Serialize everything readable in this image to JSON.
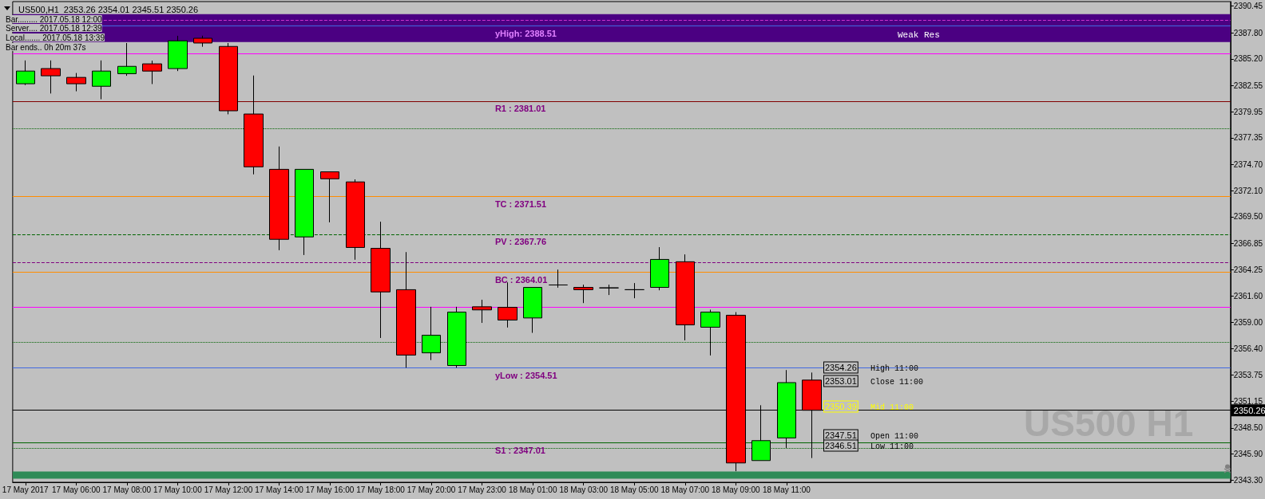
{
  "chart_data": {
    "type": "candlestick",
    "title": "US500,H1  2353.26 2354.01 2345.51 2350.26",
    "categories": [
      "17 May 2017",
      null,
      "17 May 06:00",
      null,
      "17 May 08:00",
      null,
      "17 May 10:00",
      null,
      "17 May 12:00",
      null,
      "17 May 14:00",
      null,
      "17 May 16:00",
      null,
      "17 May 18:00",
      null,
      "17 May 20:00",
      null,
      "17 May 23:00",
      null,
      "18 May 01:00",
      null,
      "18 May 03:00",
      null,
      "18 May 05:00",
      null,
      "18 May 07:00",
      null,
      "18 May 09:00",
      null,
      "18 May 11:00",
      null,
      null,
      null,
      null,
      null,
      null,
      null,
      null,
      null,
      null,
      null,
      null,
      null,
      null,
      null,
      null,
      null
    ],
    "ohlc": [
      [
        2382.73,
        2385.05,
        2382.6,
        2383.99
      ],
      [
        2384.24,
        2385.05,
        2381.76,
        2383.52
      ],
      [
        2383.36,
        2383.8,
        2381.98,
        2382.73
      ],
      [
        2382.48,
        2385.05,
        2381.19,
        2383.99
      ],
      [
        2383.73,
        2386.78,
        2383.52,
        2384.46
      ],
      [
        2384.71,
        2385.03,
        2382.7,
        2383.99
      ],
      [
        2384.24,
        2387.5,
        2383.99,
        2387.0
      ],
      [
        2387.25,
        2387.51,
        2386.41,
        2386.78
      ],
      [
        2386.44,
        2386.78,
        2379.69,
        2380.04
      ],
      [
        2379.72,
        2383.55,
        2373.72,
        2374.47
      ],
      [
        2374.22,
        2376.49,
        2366.18,
        2367.26
      ],
      [
        2367.5,
        2374.22,
        2365.7,
        2374.22
      ],
      [
        2373.97,
        2373.97,
        2368.95,
        2373.28
      ],
      [
        2372.97,
        2373.22,
        2365.23,
        2366.45
      ],
      [
        2366.36,
        2369.01,
        2357.45,
        2362.03
      ],
      [
        2362.25,
        2365.99,
        2354.49,
        2355.75
      ],
      [
        2355.97,
        2360.55,
        2355.25,
        2357.72
      ],
      [
        2354.71,
        2360.55,
        2354.49,
        2360.02
      ],
      [
        2360.55,
        2361.25,
        2358.95,
        2360.24
      ],
      [
        2360.5,
        2362.98,
        2358.49,
        2359.23
      ],
      [
        2359.44,
        2362.48,
        2357.96,
        2362.48
      ],
      [
        2362.72,
        2364.25,
        2362.45,
        2362.72
      ],
      [
        2362.48,
        2362.75,
        2360.92,
        2362.25
      ],
      [
        2362.43,
        2362.75,
        2361.72,
        2362.43
      ],
      [
        2362.25,
        2362.91,
        2361.4,
        2362.25
      ],
      [
        2362.48,
        2366.48,
        2362.19,
        2365.26
      ],
      [
        2365.03,
        2365.76,
        2357.21,
        2358.75
      ],
      [
        2358.52,
        2360.26,
        2355.71,
        2360.02
      ],
      [
        2359.71,
        2360.02,
        2344.2,
        2345.02
      ],
      [
        2345.26,
        2350.76,
        2345.26,
        2347.24
      ],
      [
        2347.51,
        2354.26,
        2346.51,
        2353.01
      ],
      [
        2353.26,
        2354.01,
        2345.51,
        2350.26
      ],
      null,
      null,
      null,
      null,
      null,
      null,
      null,
      null,
      null,
      null,
      null,
      null,
      null,
      null,
      null,
      null
    ],
    "colors": [
      "#00ff00",
      "#ff0000",
      "#ff0000",
      "#00ff00",
      "#00ff00",
      "#ff0000",
      "#00ff00",
      "#ff0000",
      "#ff0000",
      "#ff0000",
      "#ff0000",
      "#00ff00",
      "#ff0000",
      "#ff0000",
      "#ff0000",
      "#ff0000",
      "#00ff00",
      "#00ff00",
      "#ff0000",
      "#ff0000",
      "#00ff00",
      "#000000",
      "#ff0000",
      "#000000",
      "#000000",
      "#00ff00",
      "#ff0000",
      "#00ff00",
      "#ff0000",
      "#00ff00",
      "#00ff00",
      "#ff0000",
      null,
      null,
      null,
      null,
      null,
      null,
      null,
      null,
      null,
      null,
      null,
      null,
      null,
      null,
      null,
      null
    ],
    "ylim": [
      2343.1,
      2390.9
    ],
    "yticks": [
      {
        "value": 2390.45,
        "label": "2390.45"
      },
      {
        "value": 2387.8,
        "label": "2387.80"
      },
      {
        "value": 2385.2,
        "label": "2385.20"
      },
      {
        "value": 2382.55,
        "label": "2382.55"
      },
      {
        "value": 2379.95,
        "label": "2379.95"
      },
      {
        "value": 2377.35,
        "label": "2377.35"
      },
      {
        "value": 2374.7,
        "label": "2374.70"
      },
      {
        "value": 2372.1,
        "label": "2372.10"
      },
      {
        "value": 2369.5,
        "label": "2369.50"
      },
      {
        "value": 2366.85,
        "label": "2366.85"
      },
      {
        "value": 2364.25,
        "label": "2364.25"
      },
      {
        "value": 2361.6,
        "label": "2361.60"
      },
      {
        "value": 2359,
        "label": "2359.00"
      },
      {
        "value": 2356.4,
        "label": "2356.40"
      },
      {
        "value": 2353.75,
        "label": "2353.75"
      },
      {
        "value": 2351.15,
        "label": "2351.15"
      },
      {
        "value": 2348.5,
        "label": "2348.50"
      },
      {
        "value": 2345.9,
        "label": "2345.90"
      },
      {
        "value": 2343.3,
        "label": "2343.30"
      }
    ],
    "grid": false,
    "bands": [
      {
        "axis": "y",
        "from": 2386.88,
        "to": 2389.66,
        "color": "#4b0082"
      },
      {
        "axis": "y",
        "from": 2343.46,
        "to": 2344.17,
        "color": "#2e8b57"
      }
    ],
    "ref_lines": [
      {
        "axis": "y",
        "value": 2389.02,
        "color": "#cc33cc",
        "line_style": "dashed"
      },
      {
        "axis": "y",
        "value": 2388.51,
        "label": "yHigh: 2388.51",
        "color": "#4169e1"
      },
      {
        "axis": "y",
        "value": 2385.75,
        "color": "#ff00ff"
      },
      {
        "axis": "y",
        "value": 2381.01,
        "label": "R1 : 2381.01",
        "color": "#800000"
      },
      {
        "axis": "y",
        "value": 2378.28,
        "color": "#006400",
        "line_style": "dotted"
      },
      {
        "axis": "y",
        "value": 2371.51,
        "label": "TC : 2371.51",
        "color": "#ff8c00"
      },
      {
        "axis": "y",
        "value": 2367.76,
        "label": "PV : 2367.76",
        "color": "#006400",
        "line_style": "dashed"
      },
      {
        "axis": "y",
        "value": 2364.95,
        "color": "#800080",
        "line_style": "dashed"
      },
      {
        "axis": "y",
        "value": 2364.01,
        "label": "BC : 2364.01",
        "color": "#ff8c00"
      },
      {
        "axis": "y",
        "value": 2360.51,
        "color": "#ff00ff"
      },
      {
        "axis": "y",
        "value": 2357.01,
        "color": "#006400",
        "line_style": "dotted"
      },
      {
        "axis": "y",
        "value": 2354.51,
        "label": "yLow : 2354.51",
        "color": "#4169e1"
      },
      {
        "axis": "y",
        "value": 2347.01,
        "label": "S1 : 2347.01",
        "color": "#006400"
      },
      {
        "axis": "y",
        "value": 2346.45,
        "color": "#006400",
        "line_style": "dotted"
      },
      {
        "axis": "y",
        "value": 2350.26,
        "label": "2350.26",
        "color": "#000000"
      }
    ],
    "annotations": [
      "Bar......... 2017.05.18 12:00",
      "Server.... 2017.05.18 12:39",
      "Local....... 2017.05.18 13:39",
      "Bar ends.. 0h 20m 37s",
      "Weak Res",
      "US500 H1",
      "2354.26",
      "High 11:00",
      "2353.01",
      "Close 11:00",
      "2350.39",
      "Mid 11:00",
      "2347.51",
      "Open 11:00",
      "2346.51",
      "Low 11:00"
    ]
  }
}
